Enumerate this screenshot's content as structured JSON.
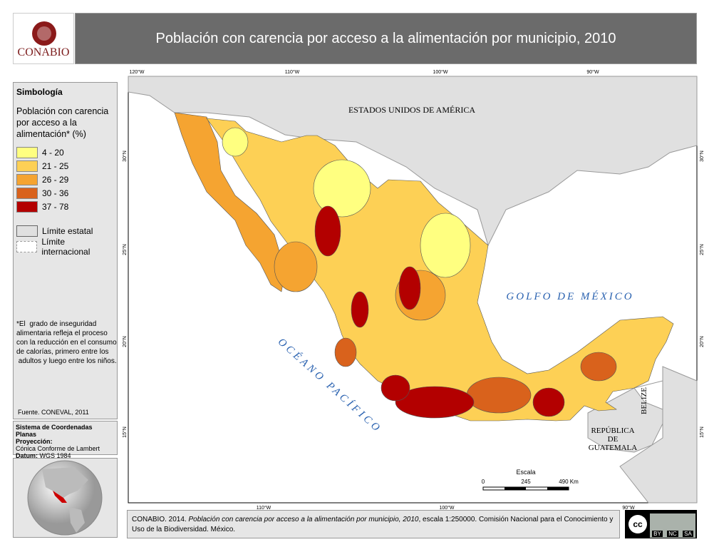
{
  "header": {
    "logo_text": "CONABIO",
    "title": "Población con carencia por acceso a la alimentación por municipio, 2010"
  },
  "legend": {
    "title": "Simbología",
    "subtitle_lines": [
      "Población con carencia",
      "por acceso a la",
      "alimentación* (%)"
    ],
    "classes": [
      {
        "label": "4 - 20",
        "color": "#ffff80"
      },
      {
        "label": "21 - 25",
        "color": "#fdd055"
      },
      {
        "label": "26 - 29",
        "color": "#f5a431"
      },
      {
        "label": "30 - 36",
        "color": "#d9621c"
      },
      {
        "label": "37 - 78",
        "color": "#b30000"
      }
    ],
    "boundaries": [
      "Límite estatal",
      "Límite internacional"
    ],
    "note_lines": [
      "*El  grado de inseguridad",
      "alimentaria refleja el proceso",
      "con la reducción en el consumo",
      "de calorías, primero entre los",
      " adultos y luego entre los niños."
    ],
    "source": "Fuente. CONEVAL, 2011"
  },
  "projection": {
    "title": "Sistema de Coordenadas Planas",
    "projection_label": "Proyección:",
    "projection": "Cónica Conforme de Lambert",
    "datum_label": "Datum:",
    "datum": "WGS 1984"
  },
  "map": {
    "top_ticks": [
      "120°W",
      "110°W",
      "100°W",
      "90°W"
    ],
    "bottom_ticks": [
      "110°W",
      "100°W",
      "90°W"
    ],
    "lat_ticks": [
      "30°N",
      "25°N",
      "20°N",
      "15°N"
    ],
    "labels": {
      "usa": "ESTADOS UNIDOS DE AMÉRICA",
      "gulf": "GOLFO DE MÉXICO",
      "pacific": "OCÉANO PACÍFICO",
      "belize": "BELIZE",
      "guatemala": [
        "REPÚBLICA",
        "DE",
        "GUATEMALA"
      ]
    },
    "scale": {
      "title": "Escala",
      "ticks": [
        "0",
        "245",
        "490 Km"
      ]
    }
  },
  "footer": {
    "prefix": "CONABIO. 2014. ",
    "title": "Población con carencia por acceso a la alimentación por municipio, 2010",
    "suffix": ", escala 1:250000. Comisión Nacional para el Conocimiento y Uso de la Biodiversidad. México."
  },
  "license": {
    "logo": "cc",
    "terms": [
      "BY",
      "NC",
      "SA"
    ]
  }
}
